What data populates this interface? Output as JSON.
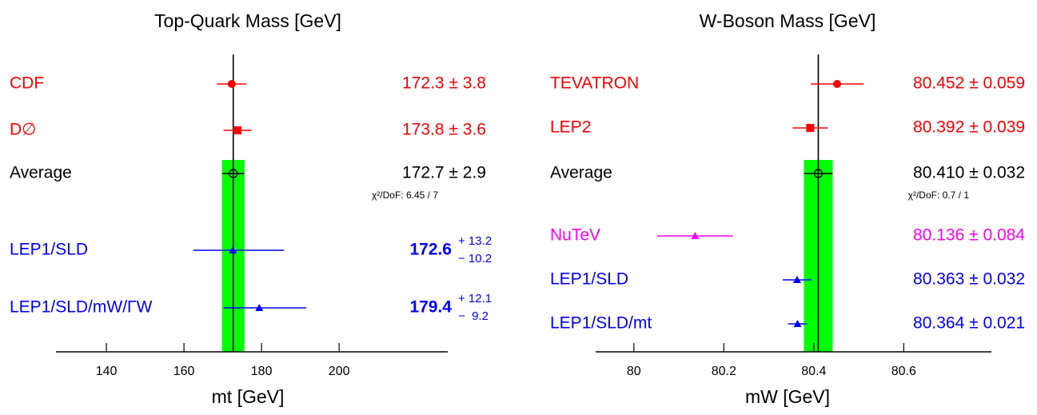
{
  "chart_data": [
    {
      "type": "errorbar",
      "title": "Top-Quark Mass   [GeV]",
      "x_label": "mt   [GeV]",
      "categories": [
        "CDF",
        "D∅",
        "Average",
        "LEP1/SLD",
        "LEP1/SLD/mW/ΓW"
      ],
      "values": [
        172.3,
        173.8,
        172.7,
        172.6,
        179.4
      ],
      "errors_plus": [
        3.8,
        3.6,
        2.9,
        13.2,
        12.1
      ],
      "errors_minus": [
        3.8,
        3.6,
        2.9,
        10.2,
        9.2
      ],
      "value_labels": [
        "172.3 ± 3.8",
        "173.8 ± 3.6",
        "172.7 ± 2.9",
        "172.6",
        "179.4"
      ],
      "upper_labels": [
        null,
        null,
        null,
        "+ 13.2",
        "+ 12.1"
      ],
      "lower_labels": [
        null,
        null,
        null,
        "− 10.2",
        "−  9.2"
      ],
      "colors": [
        "#ff0000",
        "#ff0000",
        "#000000",
        "#0000ff",
        "#0000ff"
      ],
      "markers": [
        "circle",
        "square",
        "open-circle",
        "triangle",
        "triangle"
      ],
      "annotation": "χ²/DoF: 6.45 / 7",
      "band_color": "#00ff00",
      "xlim": [
        127,
        228
      ],
      "xticks": [
        140,
        160,
        180,
        200
      ]
    },
    {
      "type": "errorbar",
      "title": "W-Boson Mass  [GeV]",
      "x_label": "mW  [GeV]",
      "categories": [
        "TEVATRON",
        "LEP2",
        "Average",
        "NuTeV",
        "LEP1/SLD",
        "LEP1/SLD/mt"
      ],
      "values": [
        80.452,
        80.392,
        80.41,
        80.136,
        80.363,
        80.364
      ],
      "errors_plus": [
        0.059,
        0.039,
        0.032,
        0.084,
        0.032,
        0.021
      ],
      "errors_minus": [
        0.059,
        0.039,
        0.032,
        0.084,
        0.032,
        0.021
      ],
      "value_labels": [
        "80.452 ± 0.059",
        "80.392 ± 0.039",
        "80.410 ± 0.032",
        "80.136 ± 0.084",
        "80.363 ± 0.032",
        "80.364 ± 0.021"
      ],
      "colors": [
        "#ff0000",
        "#ff0000",
        "#000000",
        "#ff00ff",
        "#0000ff",
        "#0000ff"
      ],
      "markers": [
        "circle",
        "square",
        "open-circle",
        "triangle",
        "triangle",
        "triangle"
      ],
      "annotation": "χ²/DoF: 0.7 / 1",
      "band_color": "#00ff00",
      "xlim": [
        79.915,
        80.795
      ],
      "xticks": [
        80,
        80.2,
        80.4,
        80.6
      ]
    }
  ]
}
